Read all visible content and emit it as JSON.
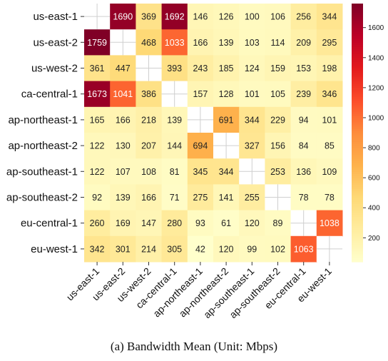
{
  "caption": "(a) Bandwidth Mean (Unit: Mbps)",
  "chart_data": {
    "type": "heatmap",
    "title": "",
    "unit": "Mbps",
    "rows": [
      "us-east-1",
      "us-east-2",
      "us-west-2",
      "ca-central-1",
      "ap-northeast-1",
      "ap-northeast-2",
      "ap-southeast-1",
      "ap-southeast-2",
      "eu-central-1",
      "eu-west-1"
    ],
    "columns": [
      "us-east-1",
      "us-east-2",
      "us-west-2",
      "ca-central-1",
      "ap-northeast-1",
      "ap-northeast-2",
      "ap-southeast-1",
      "ap-southeast-2",
      "eu-central-1",
      "eu-west-1"
    ],
    "values": [
      [
        null,
        1690,
        369,
        1692,
        146,
        126,
        100,
        106,
        256,
        344
      ],
      [
        1759,
        null,
        468,
        1033,
        166,
        139,
        103,
        114,
        209,
        295
      ],
      [
        361,
        447,
        null,
        393,
        243,
        185,
        124,
        159,
        153,
        198
      ],
      [
        1673,
        1041,
        386,
        null,
        157,
        128,
        101,
        105,
        239,
        346
      ],
      [
        165,
        166,
        218,
        139,
        null,
        691,
        344,
        229,
        94,
        101
      ],
      [
        122,
        130,
        207,
        144,
        694,
        null,
        327,
        156,
        84,
        85
      ],
      [
        122,
        107,
        108,
        81,
        345,
        344,
        null,
        253,
        136,
        109
      ],
      [
        92,
        139,
        166,
        71,
        275,
        141,
        255,
        null,
        78,
        78
      ],
      [
        260,
        169,
        147,
        280,
        93,
        61,
        120,
        89,
        null,
        1038
      ],
      [
        342,
        301,
        214,
        305,
        42,
        120,
        99,
        102,
        1063,
        null
      ]
    ],
    "colorbar": {
      "min": 40,
      "max": 1760,
      "ticks": [
        200,
        400,
        600,
        800,
        1000,
        1200,
        1400,
        1600
      ]
    },
    "colormap": [
      "#ffffcc",
      "#ffeda0",
      "#fed976",
      "#feb24c",
      "#fd8d3c",
      "#fc4e2a",
      "#e31a1c",
      "#bd0026",
      "#800026"
    ]
  }
}
